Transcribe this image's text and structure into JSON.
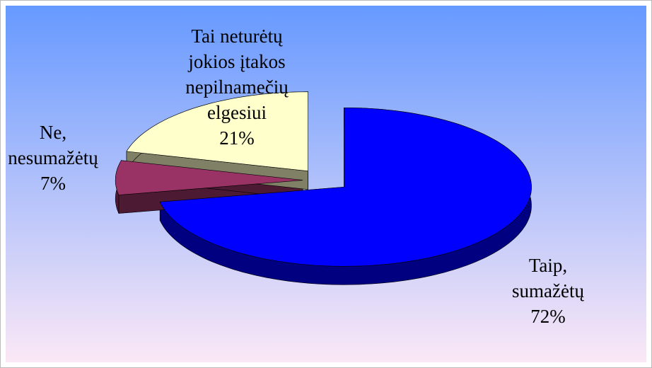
{
  "chart_data": {
    "type": "pie",
    "categories": [
      "Taip,\nsumažėtų",
      "Ne,\nnesumažėtų",
      "Tai neturėtų\njokios įtakos\nnepilnamečių\nelgesiui"
    ],
    "values": [
      72,
      7,
      21
    ],
    "value_labels": [
      "72%",
      "7%",
      "21%"
    ],
    "colors": [
      "#0000ff",
      "#993366",
      "#ffffcc"
    ],
    "side_colors": [
      "#000080",
      "#4d1a33",
      "#808066"
    ]
  }
}
